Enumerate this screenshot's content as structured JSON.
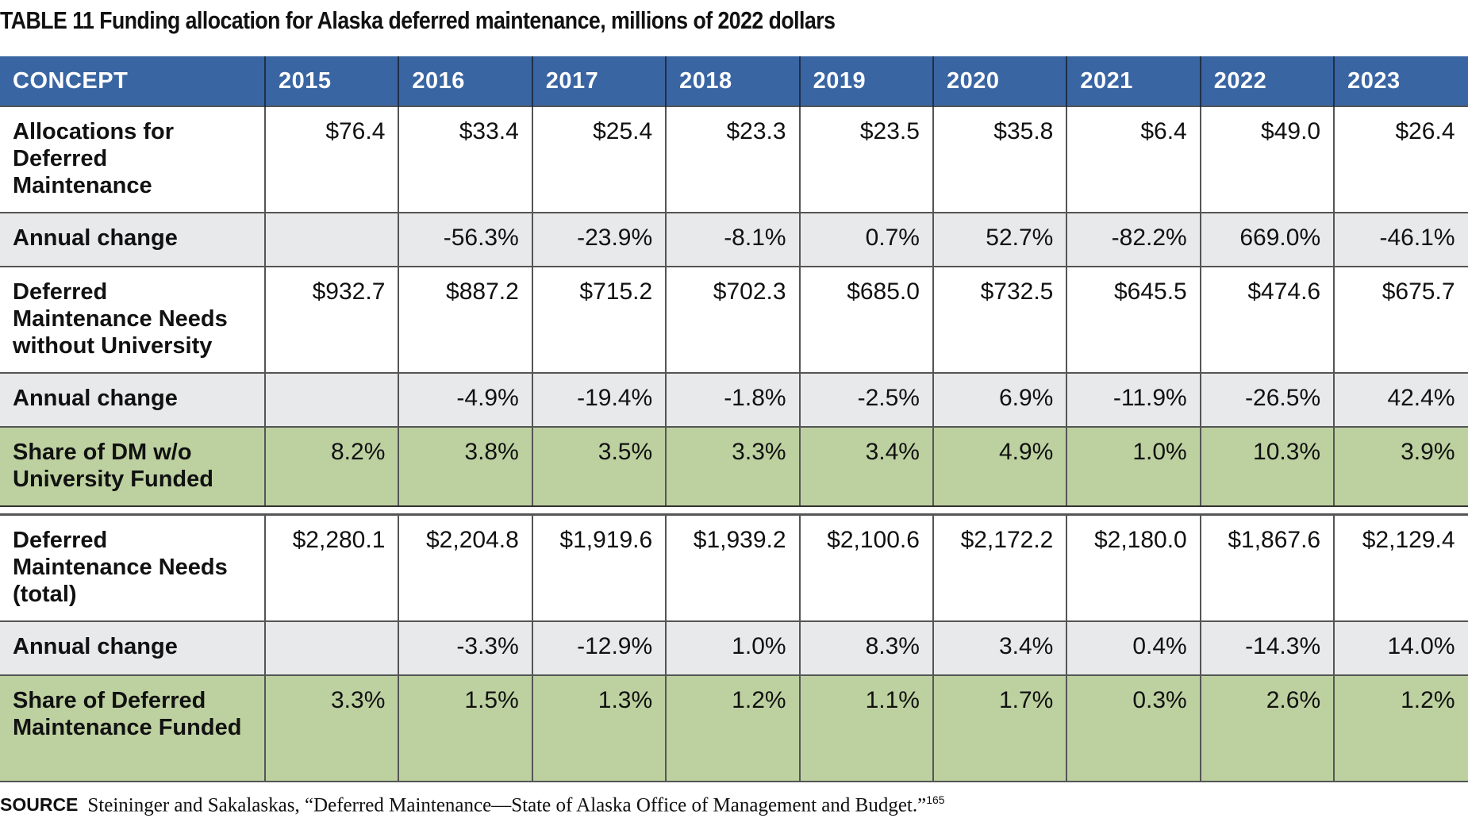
{
  "title": "TABLE 11  Funding allocation for Alaska deferred maintenance, millions of 2022 dollars",
  "header": {
    "concept": "CONCEPT",
    "years": [
      "2015",
      "2016",
      "2017",
      "2018",
      "2019",
      "2020",
      "2021",
      "2022",
      "2023"
    ]
  },
  "section1": {
    "rows": [
      {
        "label": "Allocations for Deferred Maintenance",
        "values": [
          "$76.4",
          "$33.4",
          "$25.4",
          "$23.3",
          "$23.5",
          "$35.8",
          "$6.4",
          "$49.0",
          "$26.4"
        ]
      },
      {
        "label": "Annual change",
        "values": [
          "",
          "-56.3%",
          "-23.9%",
          "-8.1%",
          "0.7%",
          "52.7%",
          "-82.2%",
          "669.0%",
          "-46.1%"
        ]
      },
      {
        "label": "Deferred Maintenance Needs without University",
        "values": [
          "$932.7",
          "$887.2",
          "$715.2",
          "$702.3",
          "$685.0",
          "$732.5",
          "$645.5",
          "$474.6",
          "$675.7"
        ]
      },
      {
        "label": "Annual change",
        "values": [
          "",
          "-4.9%",
          "-19.4%",
          "-1.8%",
          "-2.5%",
          "6.9%",
          "-11.9%",
          "-26.5%",
          "42.4%"
        ]
      },
      {
        "label": "Share of DM w/o University Funded",
        "values": [
          "8.2%",
          "3.8%",
          "3.5%",
          "3.3%",
          "3.4%",
          "4.9%",
          "1.0%",
          "10.3%",
          "3.9%"
        ]
      }
    ]
  },
  "section2": {
    "rows": [
      {
        "label": "Deferred Maintenance Needs (total)",
        "values": [
          "$2,280.1",
          "$2,204.8",
          "$1,919.6",
          "$1,939.2",
          "$2,100.6",
          "$2,172.2",
          "$2,180.0",
          "$1,867.6",
          "$2,129.4"
        ]
      },
      {
        "label": "Annual change",
        "values": [
          "",
          "-3.3%",
          "-12.9%",
          "1.0%",
          "8.3%",
          "3.4%",
          "0.4%",
          "-14.3%",
          "14.0%"
        ]
      },
      {
        "label": "Share of Deferred Maintenance Funded",
        "values": [
          "3.3%",
          "1.5%",
          "1.3%",
          "1.2%",
          "1.1%",
          "1.7%",
          "0.3%",
          "2.6%",
          "1.2%"
        ]
      }
    ]
  },
  "source": {
    "label": "SOURCE",
    "text": "Steininger and Sakalaskas, “Deferred Maintenance—State of Alaska Office of Management and Budget.”",
    "footnote": "165"
  },
  "colors": {
    "header_bg": "#3a65a3",
    "change_row_bg": "#e8e9eb",
    "share_row_bg": "#bdd1a0"
  }
}
